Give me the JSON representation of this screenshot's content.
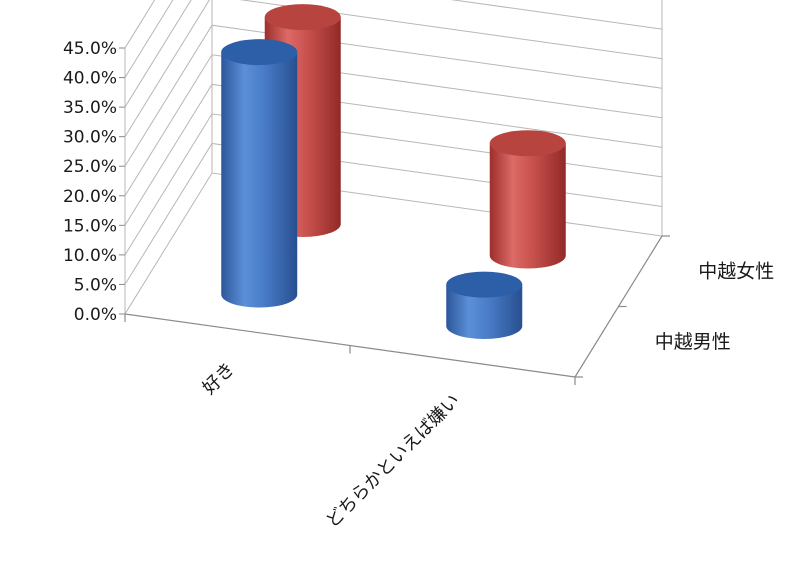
{
  "chart_data": {
    "type": "bar",
    "style": "3d-cylinder",
    "categories": [
      "好き",
      "どちらかといえば嫌い"
    ],
    "series": [
      {
        "name": "中越男性",
        "values": [
          41.0,
          7.0
        ],
        "color": "#4472C4"
      },
      {
        "name": "中越女性",
        "values": [
          35.0,
          19.0
        ],
        "color": "#C0504D"
      }
    ],
    "ylim": [
      0,
      45
    ],
    "yticks": [
      "0.0%",
      "5.0%",
      "10.0%",
      "15.0%",
      "20.0%",
      "25.0%",
      "30.0%",
      "35.0%",
      "40.0%",
      "45.0%"
    ],
    "grid": true,
    "title": "",
    "xlabel": "",
    "ylabel": ""
  }
}
